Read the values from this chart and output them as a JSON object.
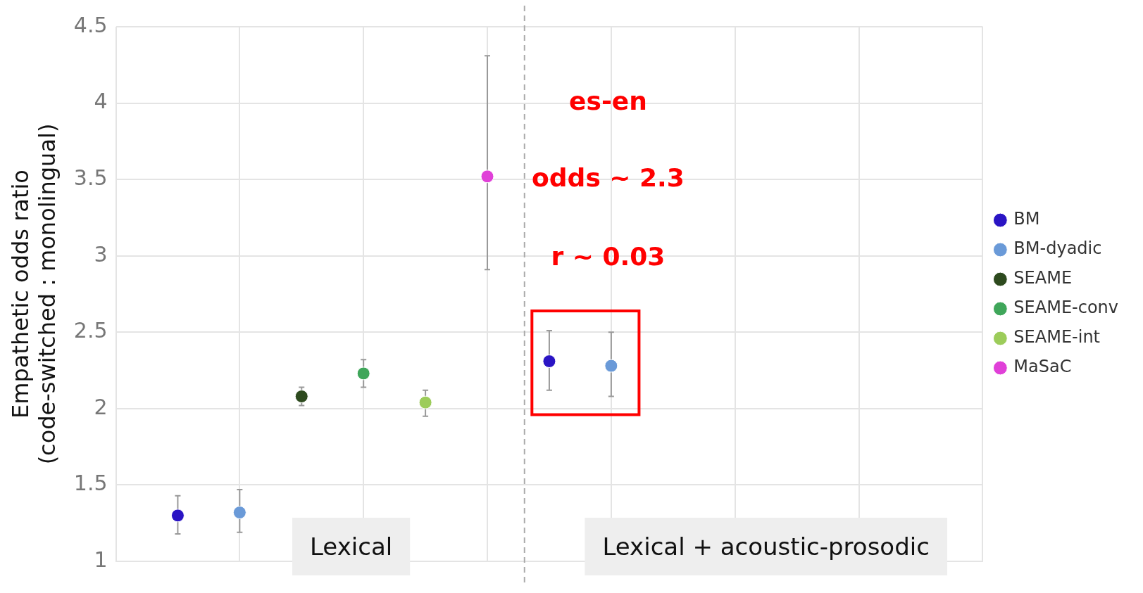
{
  "chart_data": {
    "type": "scatter",
    "ylabel": "Empathetic odds ratio\n(code-switched : monolingual)",
    "categories": [
      null,
      null,
      null,
      null,
      null,
      null,
      null,
      null,
      null,
      null,
      null,
      null,
      null,
      null,
      null
    ],
    "ylim": [
      1,
      4.5
    ],
    "yticks": [
      1,
      1.5,
      2,
      2.5,
      3,
      3.5,
      4,
      4.5
    ],
    "tick_labels": "y",
    "grid": true,
    "legend": "right",
    "marker": "circle",
    "series": [
      {
        "name": "BM",
        "color": "#2a14c4",
        "values": [
          null,
          1.3,
          null,
          null,
          null,
          null,
          null,
          2.31,
          null,
          null,
          null,
          null,
          null,
          null,
          null
        ],
        "errors": [
          null,
          [
            1.18,
            1.43
          ],
          null,
          null,
          null,
          null,
          null,
          [
            2.12,
            2.51
          ],
          null,
          null,
          null,
          null,
          null,
          null,
          null
        ]
      },
      {
        "name": "BM-dyadic",
        "color": "#6a9ad8",
        "values": [
          null,
          null,
          1.32,
          null,
          null,
          null,
          null,
          null,
          2.28,
          null,
          null,
          null,
          null,
          null,
          null
        ],
        "errors": [
          null,
          null,
          [
            1.19,
            1.47
          ],
          null,
          null,
          null,
          null,
          null,
          [
            2.08,
            2.5
          ],
          null,
          null,
          null,
          null,
          null,
          null
        ]
      },
      {
        "name": "SEAME",
        "color": "#2d4a1e",
        "values": [
          null,
          null,
          null,
          2.08,
          null,
          null,
          null,
          null,
          null,
          null,
          null,
          null,
          null,
          null,
          null
        ],
        "errors": [
          null,
          null,
          null,
          [
            2.02,
            2.14
          ],
          null,
          null,
          null,
          null,
          null,
          null,
          null,
          null,
          null,
          null,
          null
        ]
      },
      {
        "name": "SEAME-conv",
        "color": "#3fa65a",
        "values": [
          null,
          null,
          null,
          null,
          2.23,
          null,
          null,
          null,
          null,
          null,
          null,
          null,
          null,
          null,
          null
        ],
        "errors": [
          null,
          null,
          null,
          null,
          [
            2.14,
            2.32
          ],
          null,
          null,
          null,
          null,
          null,
          null,
          null,
          null,
          null,
          null
        ]
      },
      {
        "name": "SEAME-int",
        "color": "#9ccc5a",
        "values": [
          null,
          null,
          null,
          null,
          null,
          2.04,
          null,
          null,
          null,
          null,
          null,
          null,
          null,
          null,
          null
        ],
        "errors": [
          null,
          null,
          null,
          null,
          null,
          [
            1.95,
            2.12
          ],
          null,
          null,
          null,
          null,
          null,
          null,
          null,
          null,
          null
        ]
      },
      {
        "name": "MaSaC",
        "color": "#e040d8",
        "values": [
          null,
          null,
          null,
          null,
          null,
          null,
          3.52,
          null,
          null,
          null,
          null,
          null,
          null,
          null,
          null
        ],
        "errors": [
          null,
          null,
          null,
          null,
          null,
          null,
          [
            2.91,
            4.31
          ],
          null,
          null,
          null,
          null,
          null,
          null,
          null,
          null
        ]
      }
    ],
    "annotations": [
      "Lexical",
      "Lexical + acoustic-prosodic",
      "es-en",
      "odds ~ 2.3",
      "r ~ 0.03"
    ]
  }
}
